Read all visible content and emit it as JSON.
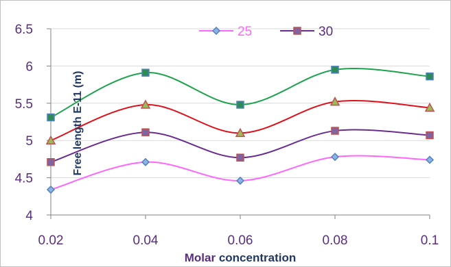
{
  "chart_data": {
    "type": "line",
    "xlabel": "Molar concentration",
    "ylabel": "Free length E-11 (m)",
    "x": [
      0.02,
      0.04,
      0.06,
      0.08,
      0.1
    ],
    "x_tick_labels": [
      "0.02",
      "0.04",
      "0.06",
      "0.08",
      "0.1"
    ],
    "y_tick_labels": [
      "4",
      "4.5",
      "5",
      "5.5",
      "6",
      "6.5"
    ],
    "y_ticks": [
      4,
      4.5,
      5,
      5.5,
      6,
      6.5
    ],
    "xlim": [
      0.02,
      0.1
    ],
    "ylim": [
      4,
      6.5
    ],
    "grid": "horizontal",
    "legend_position": "top",
    "smooth": true,
    "series": [
      {
        "name": "25",
        "values": [
          4.34,
          4.71,
          4.46,
          4.78,
          4.74
        ],
        "line_color": "#ff66ff",
        "marker": "diamond",
        "marker_fill": "#8db3e2",
        "marker_stroke": "#4f81bd",
        "in_legend": true
      },
      {
        "name": "30",
        "values": [
          4.71,
          5.11,
          4.77,
          5.13,
          5.07
        ],
        "line_color": "#6a2c91",
        "marker": "square",
        "marker_fill": "#8064a2",
        "marker_stroke": "#c0504d",
        "in_legend": true
      },
      {
        "values": [
          5.0,
          5.48,
          5.1,
          5.52,
          5.44
        ],
        "line_color": "#e0101a",
        "marker": "triangle",
        "marker_fill": "#9bbb59",
        "marker_stroke": "#c0504d",
        "in_legend": false
      },
      {
        "values": [
          5.31,
          5.91,
          5.48,
          5.95,
          5.86
        ],
        "line_color": "#1aa34a",
        "marker": "square",
        "marker_fill": "#2e8b57",
        "marker_stroke": "#4f81bd",
        "in_legend": false
      }
    ],
    "legend_text_colors": {
      "25": "#ff66ff",
      "30": "#5a2d81"
    }
  }
}
